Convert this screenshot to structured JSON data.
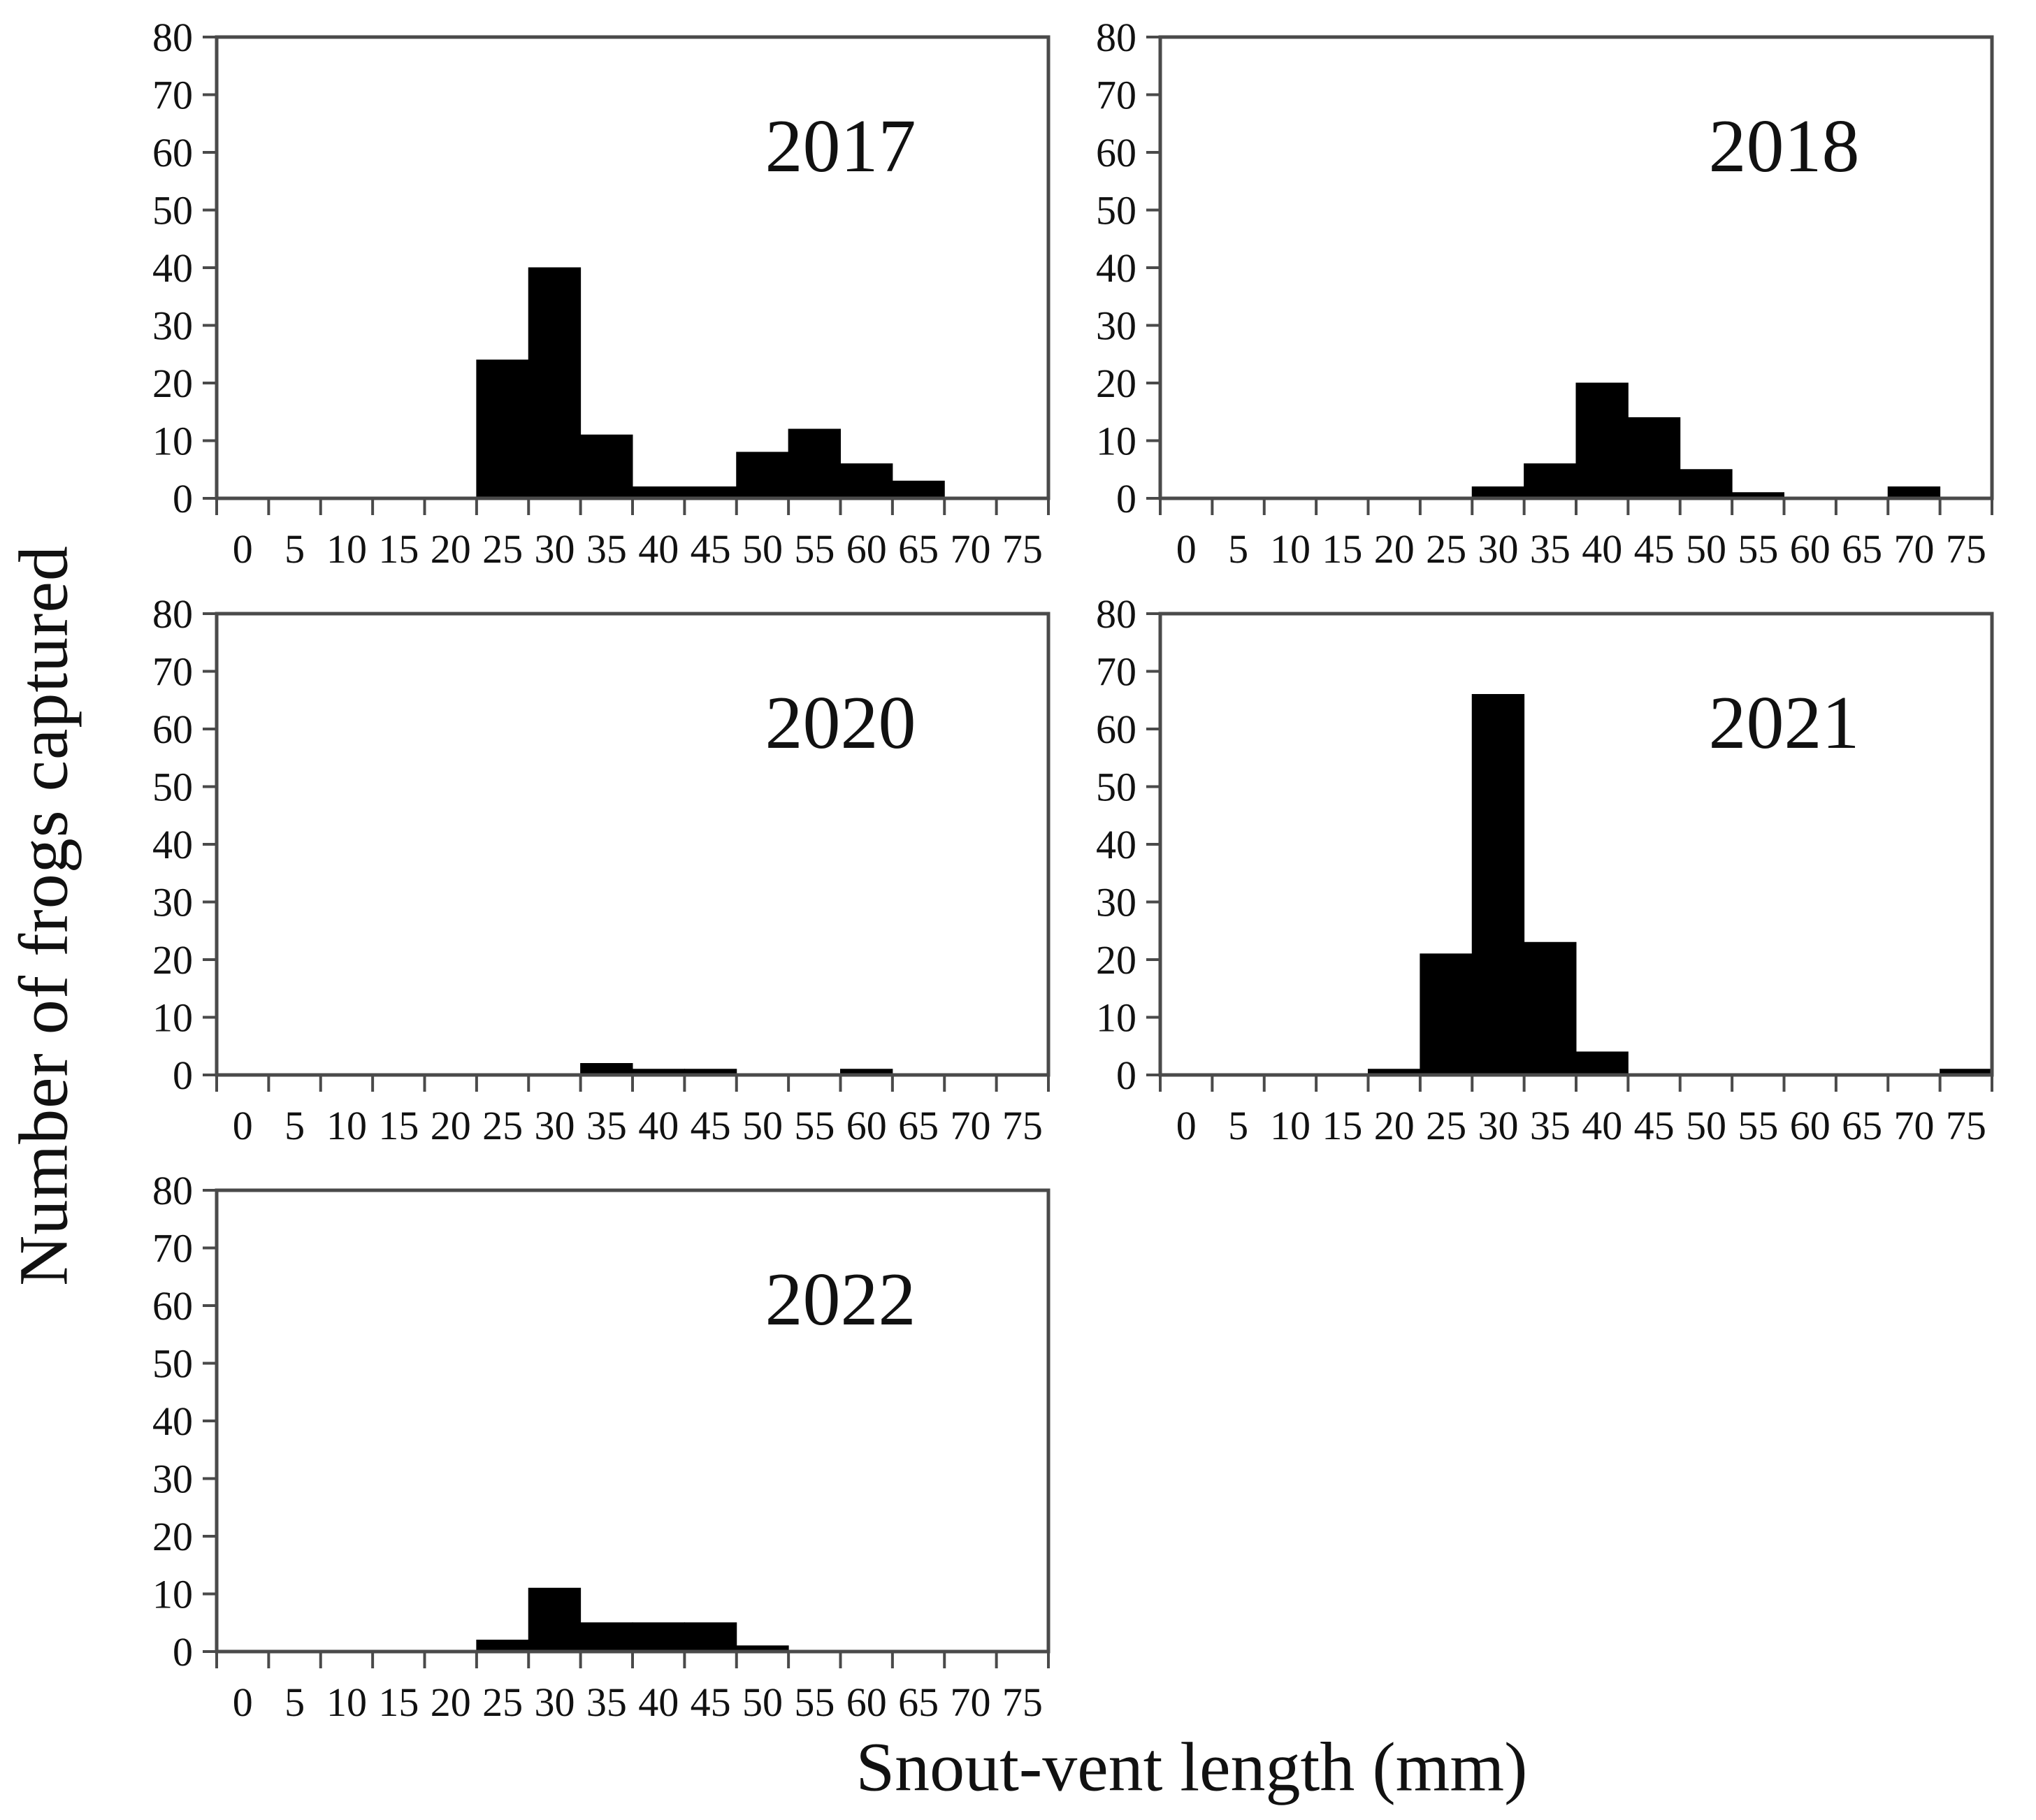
{
  "figure": {
    "xlabel": "Snout-vent length (mm)",
    "ylabel": "Number of frogs captured"
  },
  "chart_data": {
    "type": "bar",
    "subtype": "histogram-small-multiples",
    "xlabel": "Snout-vent length (mm)",
    "ylabel": "Number of frogs captured",
    "ylim": [
      0,
      80
    ],
    "y_ticks": [
      0,
      10,
      20,
      30,
      40,
      50,
      60,
      70,
      80
    ],
    "bin_width_mm": 5,
    "categories": [
      0,
      5,
      10,
      15,
      20,
      25,
      30,
      35,
      40,
      45,
      50,
      55,
      60,
      65,
      70,
      75
    ],
    "x_tick_labels": [
      "0",
      "5",
      "10",
      "15",
      "20",
      "25",
      "30",
      "35",
      "40",
      "45",
      "50",
      "55",
      "60",
      "65",
      "70",
      "75"
    ],
    "grid": false,
    "bar_color": "#000000",
    "frame_color": "#4a4a4a",
    "text_color": "#111111",
    "panels": [
      {
        "year": "2017",
        "row": 0,
        "col": 0,
        "values": [
          0,
          0,
          0,
          0,
          0,
          24,
          40,
          11,
          2,
          2,
          8,
          12,
          6,
          3,
          0,
          0
        ]
      },
      {
        "year": "2018",
        "row": 0,
        "col": 1,
        "values": [
          0,
          0,
          0,
          0,
          0,
          0,
          2,
          6,
          20,
          14,
          5,
          1,
          0,
          0,
          2,
          0
        ]
      },
      {
        "year": "2020",
        "row": 1,
        "col": 0,
        "values": [
          0,
          0,
          0,
          0,
          0,
          0,
          0,
          2,
          1,
          1,
          0,
          0,
          1,
          0,
          0,
          0
        ]
      },
      {
        "year": "2021",
        "row": 1,
        "col": 1,
        "values": [
          0,
          0,
          0,
          0,
          1,
          21,
          66,
          23,
          4,
          0,
          0,
          0,
          0,
          0,
          0,
          1
        ]
      },
      {
        "year": "2022",
        "row": 2,
        "col": 0,
        "values": [
          0,
          0,
          0,
          0,
          0,
          2,
          11,
          5,
          5,
          5,
          1,
          0,
          0,
          0,
          0,
          0
        ]
      }
    ]
  }
}
